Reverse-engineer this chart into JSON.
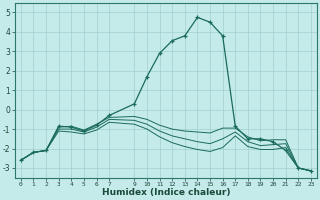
{
  "xlabel": "Humidex (Indice chaleur)",
  "ylabel": "",
  "xlim": [
    -0.5,
    23.5
  ],
  "ylim": [
    -3.5,
    5.5
  ],
  "yticks": [
    -3,
    -2,
    -1,
    0,
    1,
    2,
    3,
    4,
    5
  ],
  "xtick_vals": [
    0,
    1,
    2,
    3,
    4,
    5,
    6,
    7,
    9,
    10,
    11,
    12,
    13,
    14,
    15,
    16,
    17,
    18,
    19,
    20,
    21,
    22,
    23
  ],
  "xtick_labels": [
    "0",
    "1",
    "2",
    "3",
    "4",
    "5",
    "6",
    "7",
    "9",
    "10",
    "11",
    "12",
    "13",
    "14",
    "15",
    "16",
    "17",
    "18",
    "19",
    "20",
    "21",
    "22",
    "23"
  ],
  "bg_color": "#c5eaea",
  "grid_color": "#a0d0d0",
  "line_color": "#1a6b5a",
  "line_main": {
    "x": [
      0,
      1,
      2,
      3,
      4,
      5,
      6,
      7,
      9,
      10,
      11,
      12,
      13,
      14,
      15,
      16,
      17,
      18,
      19,
      20,
      21,
      22,
      23
    ],
    "y": [
      -2.6,
      -2.2,
      -2.1,
      -0.85,
      -0.9,
      -1.1,
      -0.8,
      -0.3,
      0.3,
      1.7,
      2.9,
      3.55,
      3.8,
      4.75,
      4.5,
      3.8,
      -0.85,
      -1.5,
      -1.5,
      -1.65,
      -2.1,
      -3.0,
      -3.15
    ]
  },
  "lines_flat": [
    {
      "x": [
        0,
        1,
        2,
        3,
        4,
        5,
        6,
        7,
        9,
        10,
        11,
        12,
        13,
        14,
        15,
        16,
        17,
        18,
        19,
        20,
        21,
        22,
        23
      ],
      "y": [
        -2.6,
        -2.2,
        -2.1,
        -0.9,
        -0.85,
        -1.05,
        -0.75,
        -0.4,
        -0.35,
        -0.5,
        -0.8,
        -1.0,
        -1.1,
        -1.15,
        -1.2,
        -0.95,
        -0.95,
        -1.4,
        -1.6,
        -1.55,
        -1.55,
        -3.0,
        -3.15
      ]
    },
    {
      "x": [
        0,
        1,
        2,
        3,
        4,
        5,
        6,
        7,
        9,
        10,
        11,
        12,
        13,
        14,
        15,
        16,
        17,
        18,
        19,
        20,
        21,
        22,
        23
      ],
      "y": [
        -2.6,
        -2.2,
        -2.1,
        -1.0,
        -1.0,
        -1.15,
        -0.9,
        -0.5,
        -0.55,
        -0.75,
        -1.1,
        -1.35,
        -1.5,
        -1.65,
        -1.75,
        -1.5,
        -1.15,
        -1.65,
        -1.85,
        -1.8,
        -1.75,
        -3.0,
        -3.15
      ]
    },
    {
      "x": [
        0,
        1,
        2,
        3,
        4,
        5,
        6,
        7,
        9,
        10,
        11,
        12,
        13,
        14,
        15,
        16,
        17,
        18,
        19,
        20,
        21,
        22,
        23
      ],
      "y": [
        -2.6,
        -2.2,
        -2.1,
        -1.1,
        -1.15,
        -1.25,
        -1.05,
        -0.65,
        -0.75,
        -1.0,
        -1.4,
        -1.7,
        -1.9,
        -2.05,
        -2.15,
        -1.95,
        -1.35,
        -1.9,
        -2.05,
        -2.05,
        -1.95,
        -3.0,
        -3.15
      ]
    }
  ]
}
